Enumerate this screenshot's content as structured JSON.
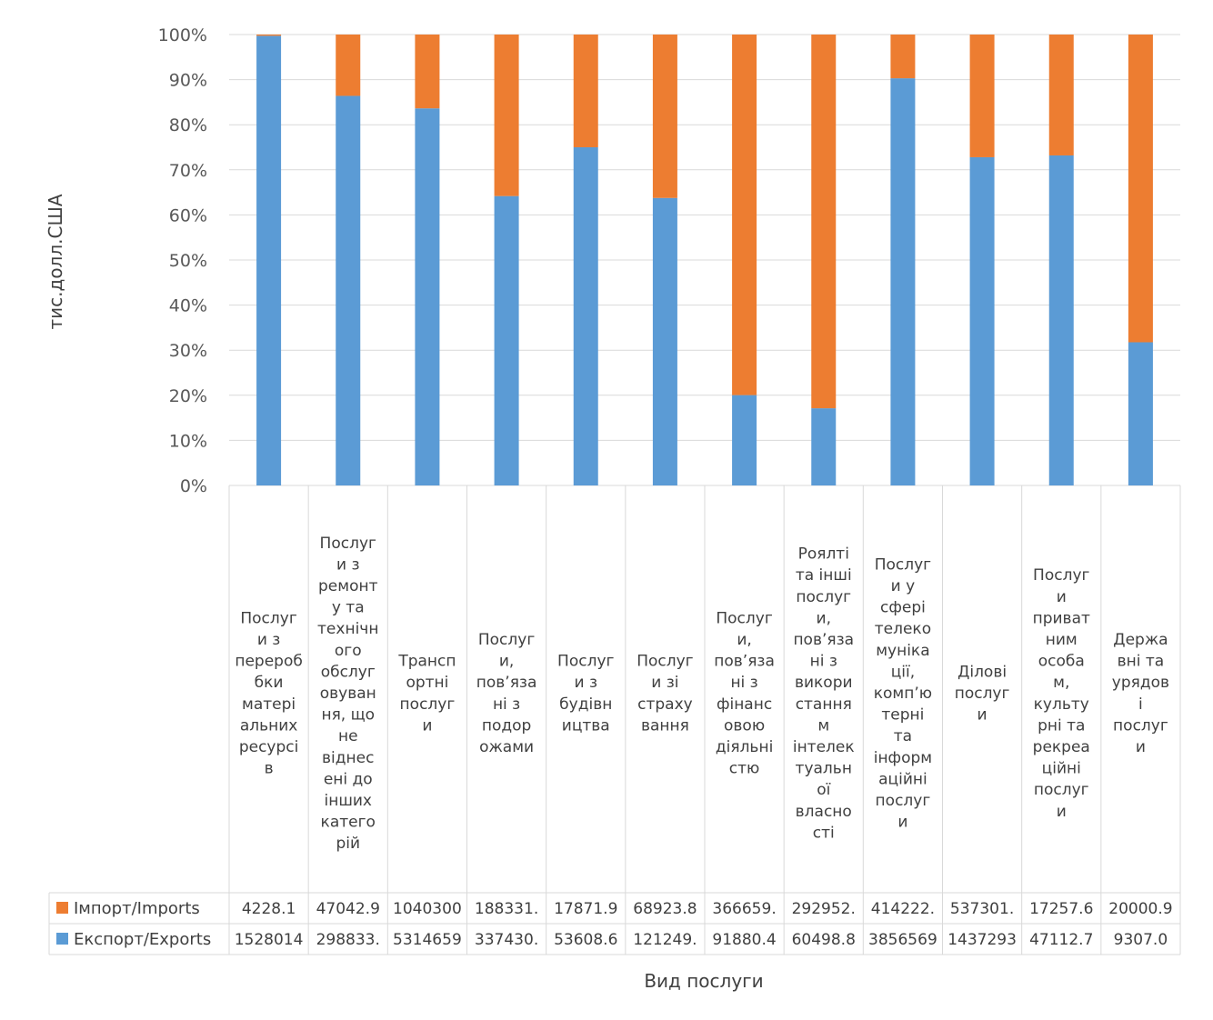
{
  "chart_data": {
    "type": "bar",
    "stacked": "percent",
    "ylabel": "тис.долл.США",
    "xlabel": "Вид послуги",
    "ylim": [
      0,
      100
    ],
    "y_ticks": [
      "0%",
      "10%",
      "20%",
      "30%",
      "40%",
      "50%",
      "60%",
      "70%",
      "80%",
      "90%",
      "100%"
    ],
    "grid": true,
    "categories": [
      "Послуги з переробки матеріальних ресурсів",
      "Послуги з ремонту та технічного обслуговування, що не віднесені до інших категорій",
      "Транспортні послуги",
      "Послуги, пов’язані з подорожами",
      "Послуги з будівництва",
      "Послуги зі страхування",
      "Послуги, пов’язані з фінансовою діяльністю",
      "Роялті та інші послуги, пов’язані з використанням інтелектуальної власності",
      "Послуги у сфері телекомунікації, комп’ютерні та інформаційні послуги",
      "Ділові послуги",
      "Послуги приватним особам, культурні та рекреаційні послуги",
      "Державні та урядові послуги"
    ],
    "category_lines": [
      [
        "Послуг",
        "и з",
        "перероб",
        "бки",
        "матері",
        "альних",
        "ресурсі",
        "в"
      ],
      [
        "Послуг",
        "и з",
        "ремонт",
        "у та",
        "технічн",
        "ого",
        "обслуг",
        "овуван",
        "ня, що",
        "не",
        "віднес",
        "ені до",
        "інших",
        "катего",
        "рій"
      ],
      [
        "Трансп",
        "ортні",
        "послуг",
        "и"
      ],
      [
        "Послуг",
        "и,",
        "пов’яза",
        "ні з",
        "подор",
        "ожами"
      ],
      [
        "Послуг",
        "и з",
        "будівн",
        "ицтва"
      ],
      [
        "Послуг",
        "и зі",
        "страху",
        "вання"
      ],
      [
        "Послуг",
        "и,",
        "пов’яза",
        "ні з",
        "фінанс",
        "овою",
        "діяльні",
        "стю"
      ],
      [
        "Роялті",
        "та інші",
        "послуг",
        "и,",
        "пов’яза",
        "ні з",
        "викори",
        "стання",
        "м",
        "інтелек",
        "туальн",
        "ої",
        "власно",
        "сті"
      ],
      [
        "Послуг",
        "и у",
        "сфері",
        "телеко",
        "муніка",
        "ції,",
        "комп’ю",
        "терні",
        "та",
        "інформ",
        "аційні",
        "послуг",
        "и"
      ],
      [
        "Ділові",
        "послуг",
        "и"
      ],
      [
        "Послуг",
        "и",
        "приват",
        "ним",
        "особа",
        "м,",
        "культу",
        "рні та",
        "рекреа",
        "ційні",
        "послуг",
        "и"
      ],
      [
        "Держа",
        "вні та",
        "урядов",
        "і",
        "послуг",
        "и"
      ]
    ],
    "series": [
      {
        "name": "Імпорт/Imports",
        "color": "#ED7D31",
        "values": [
          4228.1,
          47042.9,
          1040300,
          188331,
          17871.9,
          68923.8,
          366659,
          292952,
          414222,
          537301,
          17257.6,
          20000.9
        ],
        "table_text": [
          "4228.1",
          "47042.9",
          "1040300",
          "188331.",
          "17871.9",
          "68923.8",
          "366659.",
          "292952.",
          "414222.",
          "537301.",
          "17257.6",
          "20000.9"
        ]
      },
      {
        "name": "Експорт/Exports",
        "color": "#5B9BD5",
        "values": [
          1528014,
          298833,
          5314659,
          337430,
          53608.6,
          121249,
          91880.4,
          60498.8,
          3856569,
          1437293,
          47112.7,
          9307.0
        ],
        "table_text": [
          "1528014",
          "298833.",
          "5314659",
          "337430.",
          "53608.6",
          "121249.",
          "91880.4",
          "60498.8",
          "3856569",
          "1437293",
          "47112.7",
          "9307.0"
        ]
      }
    ]
  }
}
